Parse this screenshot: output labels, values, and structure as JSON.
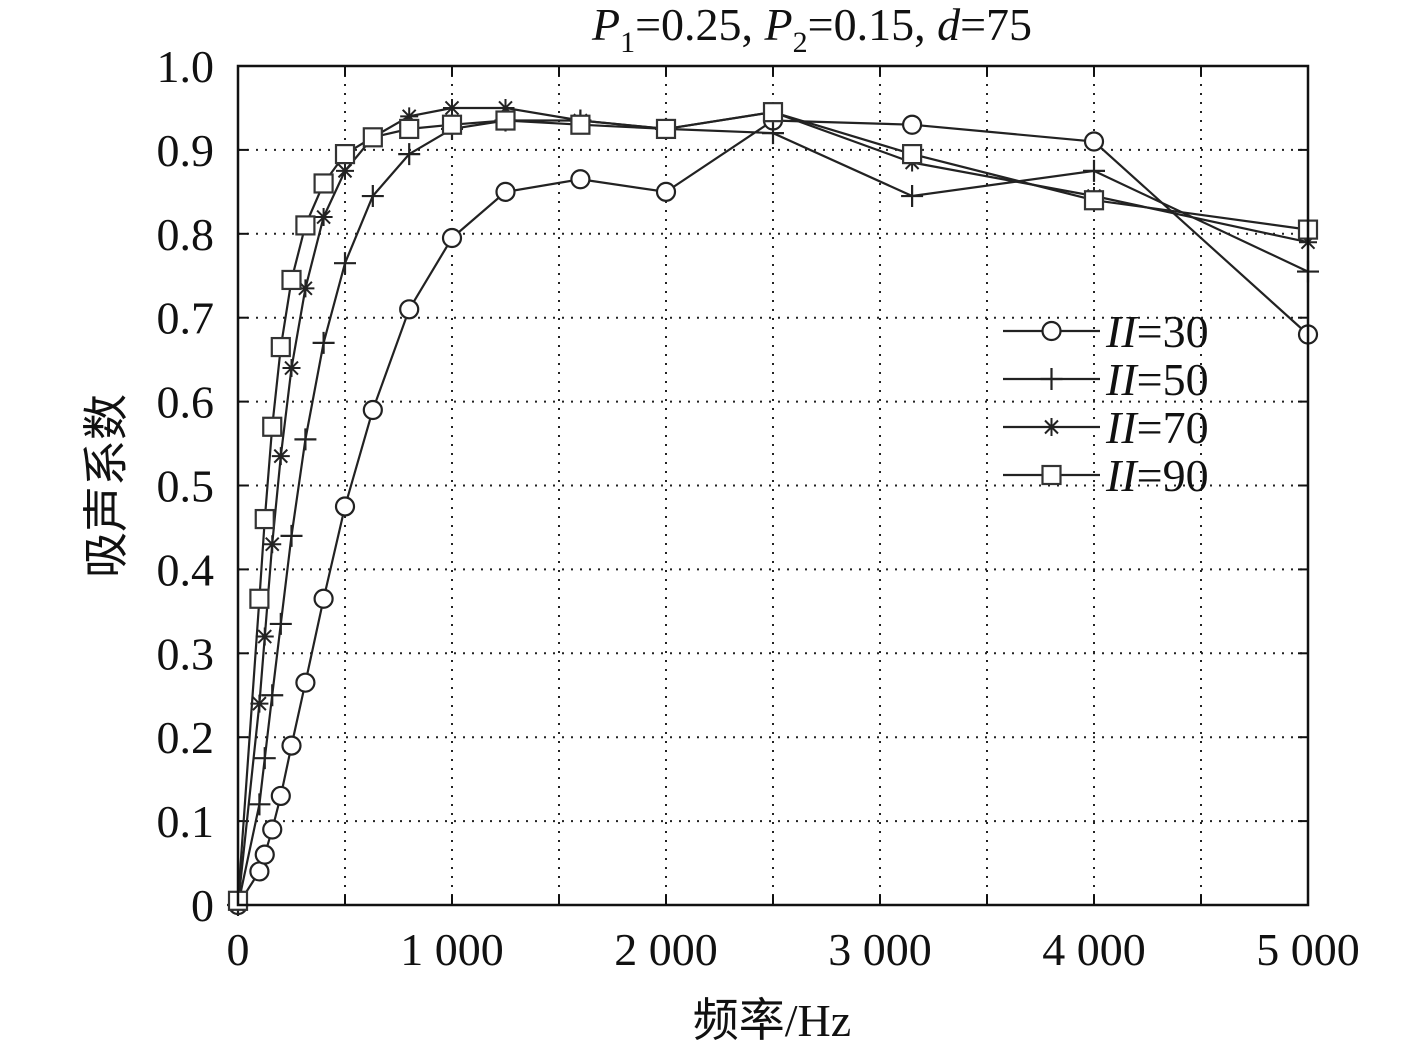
{
  "chart_data": {
    "type": "line",
    "title_parts": {
      "p1_sym": "P",
      "p1_sub": "1",
      "p1_val": "=0.25, ",
      "p2_sym": "P",
      "p2_sub": "2",
      "p2_val": "=0.15, ",
      "d_sym": "d",
      "d_val": "=75"
    },
    "xlabel": "频率/Hz",
    "ylabel": "吸声系数",
    "xlim": [
      0,
      5000
    ],
    "ylim": [
      0,
      1.0
    ],
    "x_ticks": [
      0,
      1000,
      2000,
      3000,
      4000,
      5000
    ],
    "x_tick_labels": [
      "0",
      "1 000",
      "2 000",
      "3 000",
      "4 000",
      "5 000"
    ],
    "x_minor_grid": [
      500,
      1500,
      2500,
      3500,
      4500
    ],
    "y_ticks": [
      0,
      0.1,
      0.2,
      0.3,
      0.4,
      0.5,
      0.6,
      0.7,
      0.8,
      0.9,
      1.0
    ],
    "y_tick_labels": [
      "0",
      "0.1",
      "0.2",
      "0.3",
      "0.4",
      "0.5",
      "0.6",
      "0.7",
      "0.8",
      "0.9",
      "1.0"
    ],
    "grid": true,
    "legend_position": "right-middle",
    "series": [
      {
        "name": "=30",
        "name_sym": "II",
        "marker": "circle",
        "x": [
          0,
          100,
          125,
          160,
          200,
          250,
          315,
          400,
          500,
          630,
          800,
          1000,
          1250,
          1600,
          2000,
          2500,
          3150,
          4000,
          5000
        ],
        "y": [
          0.0,
          0.04,
          0.06,
          0.09,
          0.13,
          0.19,
          0.265,
          0.365,
          0.475,
          0.59,
          0.71,
          0.795,
          0.85,
          0.865,
          0.85,
          0.935,
          0.93,
          0.91,
          0.68
        ]
      },
      {
        "name": "=50",
        "name_sym": "II",
        "marker": "plus",
        "x": [
          0,
          100,
          125,
          160,
          200,
          250,
          315,
          400,
          500,
          630,
          800,
          1000,
          1250,
          1600,
          2000,
          2500,
          3150,
          4000,
          5000
        ],
        "y": [
          0.0,
          0.12,
          0.175,
          0.25,
          0.335,
          0.44,
          0.555,
          0.67,
          0.765,
          0.845,
          0.895,
          0.925,
          0.935,
          0.935,
          0.925,
          0.92,
          0.845,
          0.875,
          0.755
        ]
      },
      {
        "name": "=70",
        "name_sym": "II",
        "marker": "star",
        "x": [
          0,
          100,
          125,
          160,
          200,
          250,
          315,
          400,
          500,
          630,
          800,
          1000,
          1250,
          1600,
          2000,
          2500,
          3150,
          4000,
          5000
        ],
        "y": [
          0.0,
          0.24,
          0.32,
          0.43,
          0.535,
          0.64,
          0.735,
          0.82,
          0.875,
          0.915,
          0.94,
          0.95,
          0.95,
          0.935,
          0.925,
          0.945,
          0.885,
          0.845,
          0.79
        ]
      },
      {
        "name": "=90",
        "name_sym": "II",
        "marker": "square",
        "x": [
          0,
          100,
          125,
          160,
          200,
          250,
          315,
          400,
          500,
          630,
          800,
          1000,
          1250,
          1600,
          2000,
          2500,
          3150,
          4000,
          5000
        ],
        "y": [
          0.005,
          0.365,
          0.46,
          0.57,
          0.665,
          0.745,
          0.81,
          0.86,
          0.895,
          0.915,
          0.925,
          0.93,
          0.935,
          0.93,
          0.925,
          0.945,
          0.895,
          0.84,
          0.805
        ]
      }
    ]
  }
}
